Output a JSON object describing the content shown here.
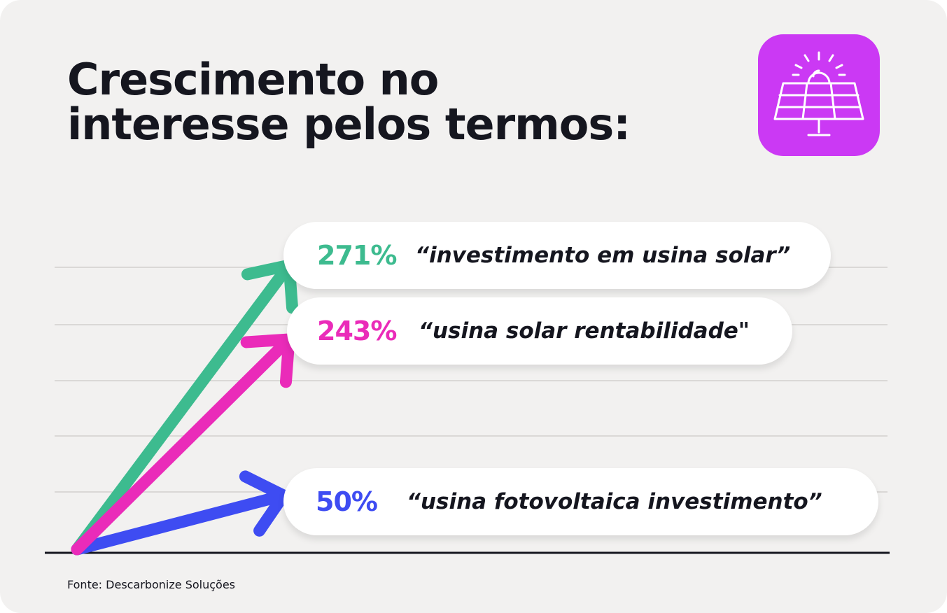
{
  "title": {
    "line1": "Crescimento no",
    "line2": "interesse pelos termos:"
  },
  "badge": {
    "icon": "solar-panel-icon",
    "color": "#cb39f4"
  },
  "chart_data": {
    "type": "bar",
    "unit": "%",
    "series": [
      {
        "value_label": "271%",
        "value": 271,
        "term": "“investimento em usina solar”",
        "color": "#3dbb8f"
      },
      {
        "value_label": "243%",
        "value": 243,
        "term": "“usina solar rentabilidade\"",
        "color": "#ea2bb9"
      },
      {
        "value_label": "50%",
        "value": 50,
        "term": "“usina fotovoltaica investimento”",
        "color": "#3e4cf2"
      }
    ],
    "grid": true
  },
  "source": "Fonte: Descarbonize Soluções"
}
